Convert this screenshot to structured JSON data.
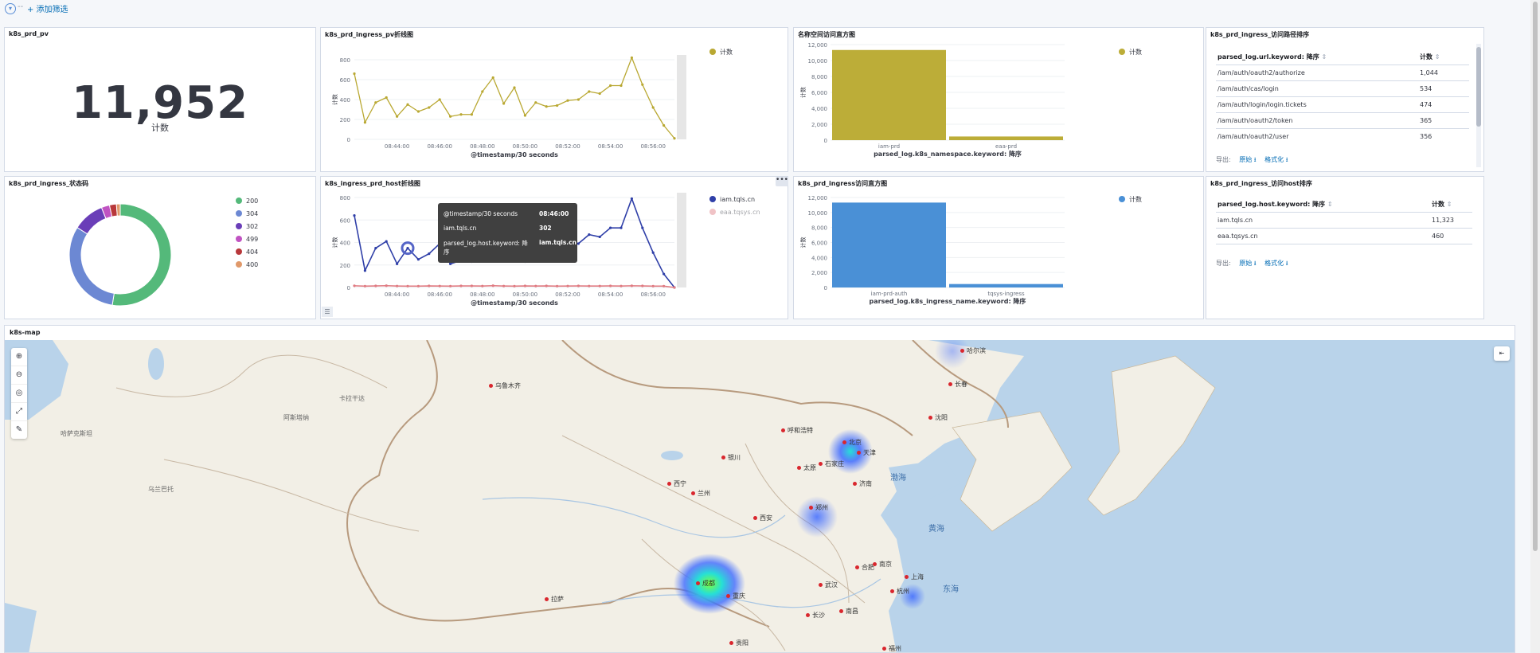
{
  "filterbar": {
    "dash": "--",
    "add_filter": "+ 添加筛选"
  },
  "panels": {
    "pv": {
      "title": "k8s_prd_pv",
      "value": "11,952",
      "label": "计数"
    },
    "pv_line": {
      "title": "k8s_prd_ingress_pv折线图",
      "legend": "计数",
      "xaxis_title": "@timestamp/30 seconds",
      "yaxis_title": "计数"
    },
    "ns_hist": {
      "title": "名称空间访问直方图",
      "legend": "计数",
      "xaxis_title": "parsed_log.k8s_namespace.keyword: 降序",
      "yaxis_title": "计数"
    },
    "url_table": {
      "title": "k8s_prd_ingress_访问路径排序",
      "col1": "parsed_log.url.keyword: 降序",
      "col2": "计数",
      "rows": [
        {
          "path": "/iam/auth/oauth2/authorize",
          "count": "1,044"
        },
        {
          "path": "/iam/auth/cas/login",
          "count": "534"
        },
        {
          "path": "/iam/auth/login/login.tickets",
          "count": "474"
        },
        {
          "path": "/iam/auth/oauth2/token",
          "count": "365"
        },
        {
          "path": "/iam/auth/oauth2/user",
          "count": "356"
        }
      ],
      "export_label": "导出:",
      "raw": "原始",
      "formatted": "格式化"
    },
    "status": {
      "title": "k8s_prd_ingress_状态码"
    },
    "host_line": {
      "title": "k8s_ingress_prd_host折线图",
      "xaxis_title": "@timestamp/30 seconds",
      "yaxis_title": "计数",
      "more": "•••",
      "legend_toggle": "☰"
    },
    "ingress_hist": {
      "title": "k8s_prd_ingress访问直方图",
      "legend": "计数",
      "xaxis_title": "parsed_log.k8s_ingress_name.keyword: 降序",
      "yaxis_title": "计数"
    },
    "host_table": {
      "title": "k8s_prd_ingress_访问host排序",
      "col1": "parsed_log.host.keyword: 降序",
      "col2": "计数",
      "rows": [
        {
          "host": "iam.tqls.cn",
          "count": "11,323"
        },
        {
          "host": "eaa.tqsys.cn",
          "count": "460"
        }
      ],
      "export_label": "导出:",
      "raw": "原始",
      "formatted": "格式化"
    }
  },
  "tooltip": {
    "k1": "@timestamp/30 seconds",
    "v1": "08:46:00",
    "k2": "iam.tqls.cn",
    "v2": "302",
    "k3a": "parsed_log.host.keyword: 降",
    "k3b": "序",
    "v3": "iam.tqls.cn"
  },
  "map": {
    "title": "k8s-map",
    "cities": [
      "哈尔滨",
      "长春",
      "乌鲁木齐",
      "沈阳",
      "呼和浩特",
      "北京",
      "天津",
      "太原",
      "石家庄",
      "济南",
      "银川",
      "西宁",
      "兰州",
      "郑州",
      "西安",
      "合肥",
      "南京",
      "上海",
      "杭州",
      "武汉",
      "成都",
      "重庆",
      "长沙",
      "南昌",
      "拉萨",
      "贵阳",
      "福州"
    ],
    "seas": [
      "渤海",
      "黄海",
      "东海"
    ],
    "regions": [
      "哈萨克斯坦",
      "阿斯塔纳",
      "卡拉干达",
      "乌兰巴托"
    ]
  },
  "chart_data": [
    {
      "type": "line",
      "title": "k8s_prd_ingress_pv折线图",
      "xlabel": "@timestamp/30 seconds",
      "ylabel": "计数",
      "x_ticks": [
        "08:44:00",
        "08:46:00",
        "08:48:00",
        "08:50:00",
        "08:52:00",
        "08:54:00",
        "08:56:00"
      ],
      "ylim": [
        0,
        800
      ],
      "y_ticks": [
        0,
        200,
        400,
        600,
        800
      ],
      "series": [
        {
          "name": "计数",
          "color": "#b9a832",
          "values": [
            660,
            170,
            370,
            420,
            230,
            350,
            280,
            320,
            400,
            230,
            250,
            250,
            480,
            620,
            360,
            520,
            240,
            370,
            330,
            340,
            390,
            400,
            480,
            460,
            540,
            540,
            820,
            550,
            320,
            140,
            10
          ]
        }
      ]
    },
    {
      "type": "bar",
      "title": "名称空间访问直方图",
      "xlabel": "parsed_log.k8s_namespace.keyword: 降序",
      "ylabel": "计数",
      "categories": [
        "iam-prd",
        "eaa-prd"
      ],
      "ylim": [
        0,
        12000
      ],
      "y_ticks": [
        0,
        2000,
        4000,
        6000,
        8000,
        10000,
        12000
      ],
      "series": [
        {
          "name": "计数",
          "color": "#bcad38",
          "values": [
            11323,
            460
          ]
        }
      ]
    },
    {
      "type": "pie",
      "title": "k8s_prd_ingress_状态码",
      "labels": [
        "200",
        "304",
        "302",
        "499",
        "404",
        "400"
      ],
      "colors": [
        "#54b97a",
        "#6c88d3",
        "#6a3eb8",
        "#c053c2",
        "#b8383b",
        "#e0996a"
      ],
      "values": [
        52.5,
        31.5,
        10.0,
        2.6,
        2.2,
        1.2
      ]
    },
    {
      "type": "line",
      "title": "k8s_ingress_prd_host折线图",
      "xlabel": "@timestamp/30 seconds",
      "ylabel": "计数",
      "x_ticks": [
        "08:44:00",
        "08:46:00",
        "08:48:00",
        "08:50:00",
        "08:52:00",
        "08:54:00",
        "08:56:00"
      ],
      "ylim": [
        0,
        800
      ],
      "y_ticks": [
        0,
        200,
        400,
        600,
        800
      ],
      "series": [
        {
          "name": "iam.tqls.cn",
          "color": "#2f3fa8",
          "values": [
            640,
            150,
            350,
            410,
            210,
            350,
            250,
            300,
            390,
            210,
            240,
            230,
            470,
            610,
            350,
            510,
            230,
            360,
            320,
            330,
            380,
            390,
            470,
            450,
            530,
            530,
            790,
            530,
            310,
            120,
            0
          ]
        },
        {
          "name": "eaa.tqsys.cn",
          "color": "#e07b82",
          "values": [
            15,
            12,
            14,
            16,
            13,
            12,
            12,
            14,
            13,
            12,
            14,
            14,
            13,
            16,
            13,
            12,
            14,
            13,
            14,
            12,
            13,
            14,
            13,
            13,
            14,
            13,
            15,
            14,
            12,
            12,
            0
          ]
        }
      ]
    },
    {
      "type": "bar",
      "title": "k8s_prd_ingress访问直方图",
      "xlabel": "parsed_log.k8s_ingress_name.keyword: 降序",
      "ylabel": "计数",
      "categories": [
        "iam-prd-auth",
        "tqsys-ingress"
      ],
      "ylim": [
        0,
        12000
      ],
      "y_ticks": [
        0,
        2000,
        4000,
        6000,
        8000,
        10000,
        12000
      ],
      "series": [
        {
          "name": "计数",
          "color": "#4a90d6",
          "values": [
            11323,
            460
          ]
        }
      ]
    }
  ]
}
